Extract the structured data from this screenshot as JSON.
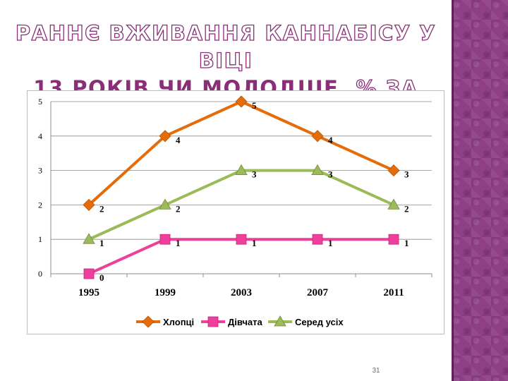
{
  "slide": {
    "title_line1": "РАННЄ ВЖИВАННЯ КАННАБІСУ У ВІЦІ",
    "title_line2_solid": "13 РОКІВ ЧИ МОЛОДШЕ",
    "title_line2_outline": ", % ЗА СТАТТЮ",
    "page_number": "31",
    "accent_color": "#8e3f86"
  },
  "chart_data": {
    "type": "line",
    "categories": [
      "1995",
      "1999",
      "2003",
      "2007",
      "2011"
    ],
    "series": [
      {
        "name": "Хлопці",
        "values": [
          2,
          4,
          5,
          4,
          3
        ],
        "color": "#e46c0a",
        "marker": "diamond"
      },
      {
        "name": "Дівчата",
        "values": [
          0,
          1,
          1,
          1,
          1
        ],
        "color": "#ee3f9a",
        "marker": "square"
      },
      {
        "name": "Серед усіх",
        "values": [
          1,
          2,
          3,
          3,
          2
        ],
        "color": "#9bbb59",
        "marker": "triangle"
      }
    ],
    "ylim": [
      0,
      5
    ],
    "yticks": [
      "0",
      "1",
      "2",
      "3",
      "4",
      "5"
    ],
    "grid": true,
    "data_labels": true,
    "legend_position": "bottom"
  }
}
